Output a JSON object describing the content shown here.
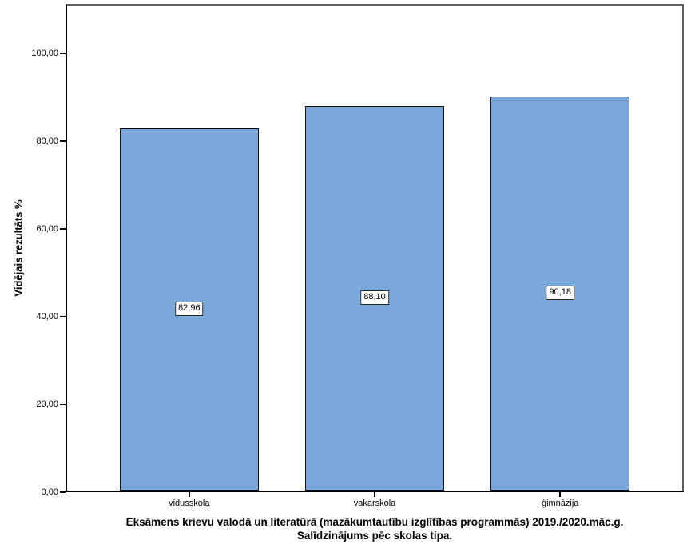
{
  "chart_data": {
    "type": "bar",
    "title_line1": "Eksāmens krievu valodā un literatūrā (mazākumtautību izglītības programmās) 2019./2020.māc.g.",
    "title_line2": "Salīdzinājums pēc skolas tipa.",
    "ylabel": "Vidējais rezultāts %",
    "xlabel": "",
    "categories": [
      "vidusskola",
      "vakarskola",
      "ģimnāzija"
    ],
    "values": [
      82.96,
      88.1,
      90.18
    ],
    "value_labels": [
      "82,96",
      "88,10",
      "90,18"
    ],
    "y_ticks": [
      {
        "value": 0,
        "label": "0,00"
      },
      {
        "value": 20,
        "label": "20,00"
      },
      {
        "value": 40,
        "label": "40,00"
      },
      {
        "value": 60,
        "label": "60,00"
      },
      {
        "value": 80,
        "label": "80,00"
      },
      {
        "value": 100,
        "label": "100,00"
      }
    ],
    "ylim": [
      0,
      111.3
    ],
    "grid": false,
    "legend_position": "none",
    "bar_color": "#78a8d8",
    "bar_border_color": "#0d0d0d",
    "frame_color": "#5f5f5f",
    "axis_color": "#000000"
  }
}
